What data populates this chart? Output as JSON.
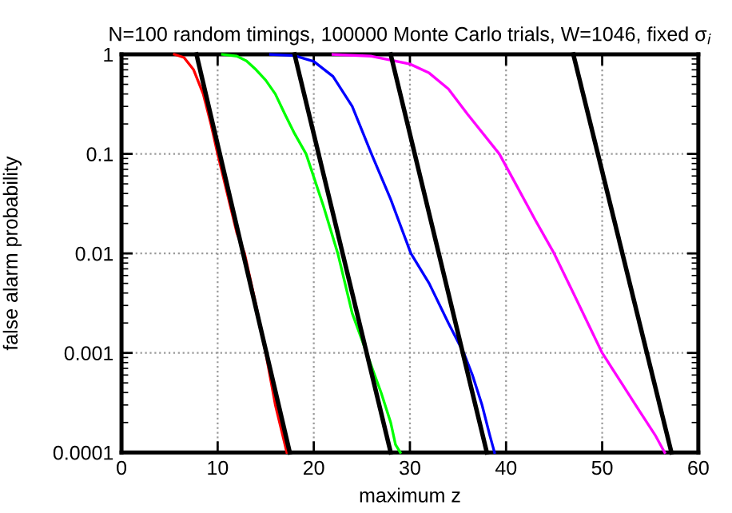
{
  "chart_data": {
    "type": "line",
    "title": "N=100 random timings, 100000 Monte Carlo trials, W=1046, fixed σ$_{i}$",
    "xlabel": "maximum z",
    "ylabel": "false alarm probability",
    "log": "y",
    "xlim": [
      0,
      60
    ],
    "xticks": [
      0,
      10,
      20,
      30,
      40,
      50,
      60
    ],
    "ylim": [
      0.0001,
      1
    ],
    "yticks": [
      {
        "value": 0.0001,
        "label": "0.0001"
      },
      {
        "value": 0.001,
        "label": "0.001"
      },
      {
        "value": 0.01,
        "label": "0.01"
      },
      {
        "value": 0.1,
        "label": "0.1"
      },
      {
        "value": 1,
        "label": "1"
      }
    ],
    "grid": true,
    "marker": "none",
    "line_style": "solid",
    "series": [
      {
        "color": "#ff0000",
        "x": [
          5.5,
          6.5,
          7.5,
          8.5,
          9.3,
          10,
          11,
          12,
          12.8,
          14,
          15,
          16,
          17.2
        ],
        "values": [
          1,
          0.93,
          0.7,
          0.4,
          0.2,
          0.1,
          0.04,
          0.016,
          0.01,
          0.003,
          0.001,
          0.0003,
          0.0001
        ]
      },
      {
        "color": "#00ff00",
        "x": [
          10.5,
          12,
          13,
          14,
          15,
          16,
          17,
          18,
          19.2,
          21,
          22.5,
          24,
          25.5,
          27,
          28,
          28.5,
          29
        ],
        "values": [
          1,
          0.96,
          0.86,
          0.7,
          0.55,
          0.4,
          0.25,
          0.16,
          0.1,
          0.03,
          0.01,
          0.0025,
          0.001,
          0.0004,
          0.0002,
          0.00012,
          0.0001
        ]
      },
      {
        "color": "#0000ff",
        "x": [
          15.5,
          18,
          20,
          22,
          24,
          26,
          28,
          30.1,
          32,
          34,
          35.6,
          36.5,
          37.5,
          38.3,
          38.8
        ],
        "values": [
          1,
          0.97,
          0.85,
          0.6,
          0.3,
          0.1,
          0.035,
          0.01,
          0.005,
          0.002,
          0.001,
          0.0006,
          0.0003,
          0.00015,
          0.0001
        ]
      },
      {
        "color": "#ff00ff",
        "x": [
          22,
          26,
          30,
          32,
          34,
          36,
          39.3,
          41,
          43,
          45,
          47,
          48.5,
          50,
          52,
          54,
          55.5,
          56.5
        ],
        "values": [
          1,
          0.96,
          0.8,
          0.65,
          0.45,
          0.25,
          0.1,
          0.05,
          0.022,
          0.01,
          0.004,
          0.002,
          0.001,
          0.0005,
          0.00025,
          0.00015,
          0.0001
        ]
      },
      {
        "color": "#000000",
        "x": [
          7.8,
          17.5
        ],
        "values": [
          1,
          0.0001
        ]
      },
      {
        "color": "#000000",
        "x": [
          18,
          28
        ],
        "values": [
          1,
          0.0001
        ]
      },
      {
        "color": "#000000",
        "x": [
          28,
          38
        ],
        "values": [
          1,
          0.0001
        ]
      },
      {
        "color": "#000000",
        "x": [
          47,
          57.2
        ],
        "values": [
          1,
          0.0001
        ]
      }
    ]
  }
}
